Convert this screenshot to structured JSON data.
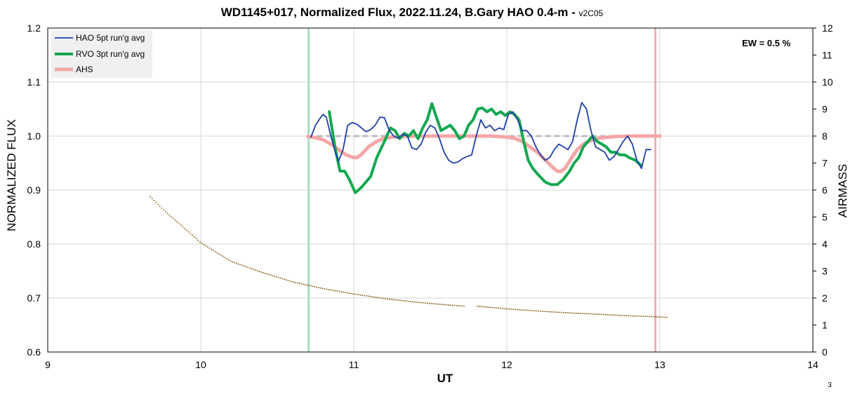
{
  "chart_data": {
    "type": "line",
    "title": "WD1145+017, Normalized Flux, 2022.11.24, B.Gary HAO 0.4-m - ",
    "title_version": "v2C05",
    "xlabel": "UT",
    "ylabel": "NORMALIZED FLUX",
    "y2label": "AIRMASS",
    "xlim": [
      9,
      14
    ],
    "ylim": [
      0.6,
      1.2
    ],
    "y2lim": [
      0,
      12
    ],
    "x_ticks": [
      "9",
      "10",
      "11",
      "12",
      "13",
      "14"
    ],
    "y_ticks": [
      "0.6",
      "0.7",
      "0.8",
      "0.9",
      "1.0",
      "1.1",
      "1.2"
    ],
    "y2_ticks": [
      "0",
      "1",
      "2",
      "3",
      "4",
      "5",
      "6",
      "7",
      "8",
      "9",
      "10",
      "11",
      "12"
    ],
    "grid": true,
    "legend_position": "top-left",
    "annotation": "EW = 0.5 %",
    "corner_label": "3",
    "vertical_markers": [
      {
        "x": 10.705,
        "color": "#a9dcbd"
      },
      {
        "x": 12.97,
        "color": "#efb3b3"
      }
    ],
    "reference_line": {
      "y": 1.0,
      "x_start": 10.7,
      "x_end": 13.0,
      "color": "#b4b4b4"
    },
    "series": [
      {
        "name": "HAO 5pt run'g avg",
        "color": "#1f3fa8",
        "x": [
          10.72,
          10.75,
          10.78,
          10.8,
          10.82,
          10.85,
          10.88,
          10.9,
          10.93,
          10.96,
          10.99,
          11.02,
          11.05,
          11.08,
          11.11,
          11.14,
          11.17,
          11.2,
          11.23,
          11.26,
          11.29,
          11.32,
          11.35,
          11.38,
          11.41,
          11.44,
          11.47,
          11.5,
          11.53,
          11.56,
          11.59,
          11.62,
          11.65,
          11.68,
          11.71,
          11.74,
          11.77,
          11.8,
          11.83,
          11.86,
          11.89,
          11.92,
          11.95,
          11.98,
          12.01,
          12.04,
          12.07,
          12.1,
          12.13,
          12.16,
          12.19,
          12.22,
          12.25,
          12.28,
          12.31,
          12.34,
          12.37,
          12.4,
          12.43,
          12.46,
          12.49,
          12.52,
          12.55,
          12.58,
          12.61,
          12.64,
          12.67,
          12.7,
          12.73,
          12.76,
          12.79,
          12.82,
          12.85,
          12.88,
          12.91,
          12.94
        ],
        "y": [
          0.998,
          1.02,
          1.033,
          1.04,
          1.035,
          1.0,
          0.97,
          0.953,
          0.975,
          1.02,
          1.025,
          1.022,
          1.015,
          1.008,
          1.012,
          1.02,
          1.035,
          1.034,
          1.012,
          1.0,
          0.996,
          1.003,
          1.0,
          0.978,
          0.975,
          0.985,
          1.007,
          1.02,
          1.015,
          0.995,
          0.97,
          0.955,
          0.95,
          0.952,
          0.958,
          0.962,
          0.965,
          1.0,
          1.03,
          1.015,
          1.02,
          1.01,
          1.015,
          1.012,
          1.04,
          1.045,
          1.03,
          1.01,
          1.01,
          1.0,
          0.98,
          0.965,
          0.955,
          0.96,
          0.975,
          0.985,
          0.98,
          0.975,
          0.99,
          1.03,
          1.062,
          1.05,
          1.01,
          0.98,
          0.975,
          0.97,
          0.955,
          0.962,
          0.975,
          0.99,
          1.0,
          0.985,
          0.955,
          0.94,
          0.975,
          0.975
        ]
      },
      {
        "name": "RVO 3pt run'g avg",
        "color": "#13a84f",
        "x": [
          10.84,
          10.88,
          10.91,
          10.94,
          10.97,
          11.01,
          11.05,
          11.11,
          11.15,
          11.2,
          11.24,
          11.27,
          11.3,
          11.33,
          11.36,
          11.39,
          11.42,
          11.45,
          11.48,
          11.51,
          11.54,
          11.57,
          11.6,
          11.63,
          11.66,
          11.69,
          11.72,
          11.75,
          11.78,
          11.81,
          11.84,
          11.87,
          11.9,
          11.93,
          11.96,
          11.99,
          12.02,
          12.05,
          12.08,
          12.11,
          12.14,
          12.17,
          12.2,
          12.25,
          12.29,
          12.33,
          12.37,
          12.41,
          12.44,
          12.47,
          12.5,
          12.53,
          12.56,
          12.59,
          12.62,
          12.65,
          12.68,
          12.71,
          12.74,
          12.77,
          12.8,
          12.84,
          12.88
        ],
        "y": [
          1.045,
          0.975,
          0.935,
          0.935,
          0.92,
          0.895,
          0.905,
          0.925,
          0.96,
          0.99,
          1.015,
          1.01,
          0.995,
          1.005,
          1.0,
          1.01,
          0.995,
          1.015,
          1.03,
          1.06,
          1.035,
          1.01,
          1.015,
          1.02,
          1.01,
          0.995,
          1.0,
          1.02,
          1.03,
          1.05,
          1.052,
          1.045,
          1.05,
          1.04,
          1.045,
          1.038,
          1.045,
          1.04,
          1.03,
          0.99,
          0.955,
          0.94,
          0.93,
          0.915,
          0.91,
          0.91,
          0.92,
          0.935,
          0.95,
          0.96,
          0.98,
          0.99,
          1.0,
          0.99,
          0.985,
          0.98,
          0.97,
          0.97,
          0.965,
          0.965,
          0.96,
          0.955,
          0.945
        ]
      },
      {
        "name": "AHS",
        "color": "#f4a6a6",
        "x": [
          10.7,
          10.75,
          10.8,
          10.85,
          10.9,
          10.95,
          11.0,
          11.02,
          11.05,
          11.1,
          11.15,
          11.2,
          11.25,
          11.3,
          11.4,
          11.5,
          11.6,
          11.7,
          11.8,
          11.9,
          12.0,
          12.05,
          12.1,
          12.15,
          12.2,
          12.25,
          12.3,
          12.33,
          12.35,
          12.38,
          12.42,
          12.46,
          12.5,
          12.55,
          12.6,
          12.7,
          12.8,
          12.9,
          13.0
        ],
        "y": [
          0.999,
          0.997,
          0.993,
          0.985,
          0.975,
          0.965,
          0.96,
          0.96,
          0.966,
          0.981,
          0.99,
          0.996,
          0.998,
          0.999,
          1.0,
          1.0,
          1.0,
          1.0,
          1.0,
          1.0,
          0.998,
          0.996,
          0.99,
          0.98,
          0.97,
          0.956,
          0.942,
          0.935,
          0.934,
          0.94,
          0.958,
          0.975,
          0.985,
          0.992,
          0.996,
          0.999,
          1.0,
          1.0,
          1.0
        ]
      },
      {
        "name": "Airmass",
        "axis": "right",
        "color": "#8b5a16",
        "style": "dotted",
        "x": [
          9.67,
          9.75,
          9.85,
          10.0,
          10.2,
          10.4,
          10.6,
          10.8,
          11.0,
          11.2,
          11.4,
          11.6,
          11.72,
          11.8,
          12.0,
          12.2,
          12.4,
          12.6,
          12.8,
          13.0,
          13.05
        ],
        "y": [
          5.75,
          5.3,
          4.8,
          4.05,
          3.35,
          2.95,
          2.6,
          2.35,
          2.15,
          1.98,
          1.85,
          1.75,
          1.7,
          1.7,
          1.6,
          1.52,
          1.45,
          1.4,
          1.34,
          1.3,
          1.28
        ]
      }
    ]
  }
}
